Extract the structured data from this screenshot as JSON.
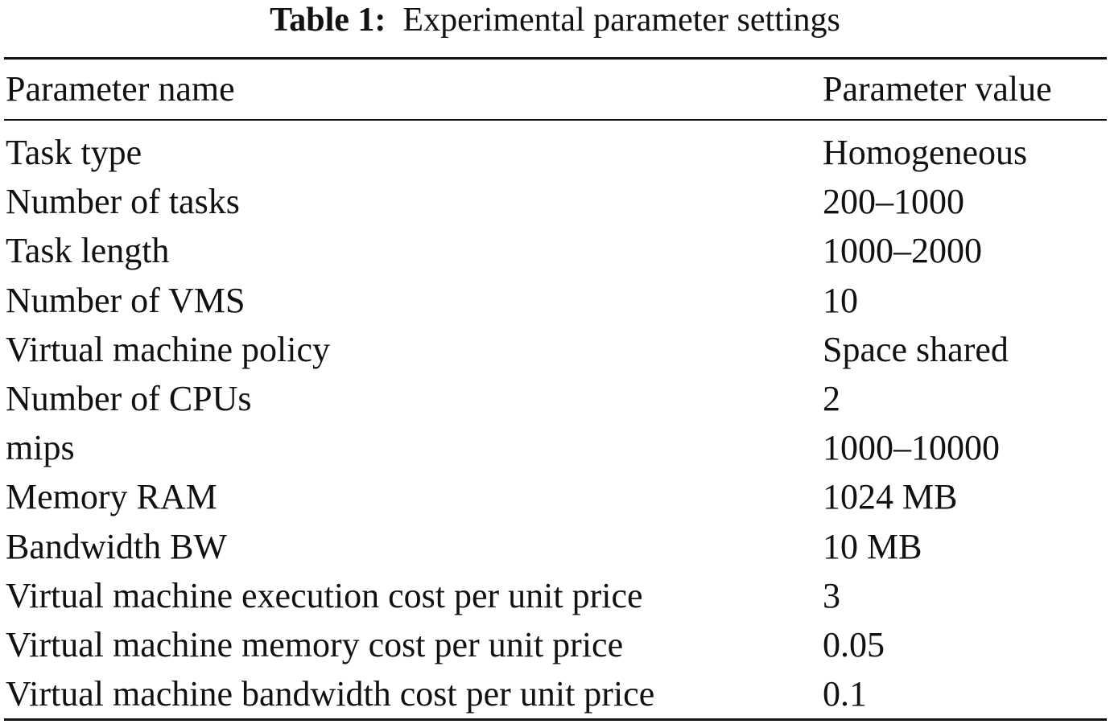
{
  "caption": {
    "label": "Table 1:",
    "text": "Experimental parameter settings"
  },
  "table": {
    "headers": {
      "name": "Parameter name",
      "value": "Parameter value"
    },
    "rows": [
      {
        "name": "Task type",
        "value": "Homogeneous"
      },
      {
        "name": "Number of tasks",
        "value": "200–1000"
      },
      {
        "name": "Task length",
        "value": "1000–2000"
      },
      {
        "name": "Number of VMS",
        "value": "10"
      },
      {
        "name": "Virtual machine policy",
        "value": "Space shared"
      },
      {
        "name": "Number of CPUs",
        "value": "2"
      },
      {
        "name": "mips",
        "value": "1000–10000"
      },
      {
        "name": "Memory RAM",
        "value": "1024 MB"
      },
      {
        "name": "Bandwidth BW",
        "value": "10 MB"
      },
      {
        "name": "Virtual machine execution cost per unit price",
        "value": "3"
      },
      {
        "name": "Virtual machine memory cost per unit price",
        "value": "0.05"
      },
      {
        "name": "Virtual machine bandwidth cost per unit price",
        "value": "0.1"
      }
    ]
  }
}
